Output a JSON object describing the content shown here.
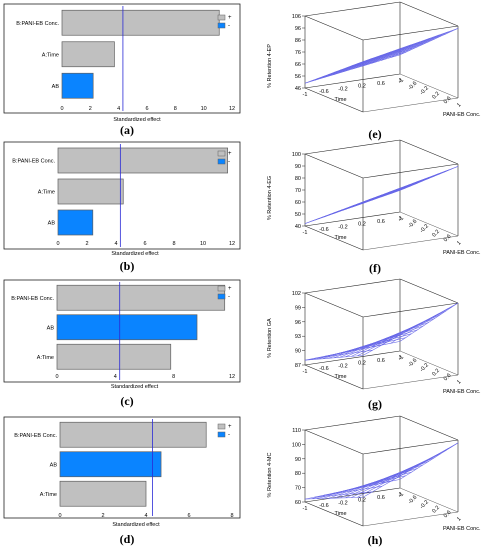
{
  "pareto_charts": [
    {
      "panel": "(a)",
      "xlabel": "Standardized effect",
      "xlim": [
        0,
        12
      ],
      "ticks": [
        0,
        2,
        4,
        6,
        8,
        10,
        12
      ],
      "critical_value": 4.3,
      "legend": [
        "+",
        "-"
      ],
      "bars": [
        {
          "label": "B:PANI-EB Conc.",
          "value": 11.1,
          "sign": "+"
        },
        {
          "label": "A:Time",
          "value": 3.7,
          "sign": "+"
        },
        {
          "label": "AB",
          "value": 2.2,
          "sign": "-"
        }
      ]
    },
    {
      "panel": "(b)",
      "xlabel": "Standardized effect",
      "xlim": [
        0,
        12
      ],
      "ticks": [
        0,
        2,
        4,
        6,
        8,
        10,
        12
      ],
      "critical_value": 4.3,
      "legend": [
        "+",
        "-"
      ],
      "bars": [
        {
          "label": "B:PANI-EB Conc.",
          "value": 11.7,
          "sign": "+"
        },
        {
          "label": "A:Time",
          "value": 4.5,
          "sign": "+"
        },
        {
          "label": "AB",
          "value": 2.4,
          "sign": "-"
        }
      ]
    },
    {
      "panel": "(c)",
      "xlabel": "Standardized effect",
      "xlim": [
        0,
        12
      ],
      "ticks": [
        0,
        4,
        8,
        12
      ],
      "critical_value": 4.3,
      "legend": [
        "+",
        "-"
      ],
      "bars": [
        {
          "label": "B:PANI-EB Conc.",
          "value": 11.5,
          "sign": "+"
        },
        {
          "label": "AB",
          "value": 9.6,
          "sign": "-"
        },
        {
          "label": "A:Time",
          "value": 7.8,
          "sign": "+"
        }
      ]
    },
    {
      "panel": "(d)",
      "xlabel": "Standardized effect",
      "xlim": [
        0,
        8
      ],
      "ticks": [
        0,
        2,
        4,
        6,
        8
      ],
      "critical_value": 4.3,
      "legend": [
        "+",
        "-"
      ],
      "bars": [
        {
          "label": "B:PANI-EB Conc.",
          "value": 6.8,
          "sign": "+"
        },
        {
          "label": "AB",
          "value": 4.7,
          "sign": "-"
        },
        {
          "label": "A:Time",
          "value": 4.0,
          "sign": "+"
        }
      ]
    }
  ],
  "surface_charts": [
    {
      "panel": "(e)",
      "zlabel": "% Retention 4-EP",
      "zticks": [
        "106",
        "96",
        "86",
        "76",
        "66",
        "56",
        "46"
      ],
      "zlim": [
        46,
        106
      ],
      "z_corners": {
        "t_lo_c_lo": 50,
        "t_hi_c_lo": 62,
        "t_lo_c_hi": 88,
        "t_hi_c_hi": 104
      },
      "time_label": "Time",
      "time_ticks": [
        "-1",
        "-0.6",
        "-0.2",
        "0.2",
        "0.6",
        "1"
      ],
      "conc_label": "PANI-EB Conc.",
      "conc_ticks": [
        "-1",
        "-0.6",
        "-0.2",
        "0.2",
        "0.6",
        "1"
      ]
    },
    {
      "panel": "(f)",
      "zlabel": "% Retention 4-EG",
      "zticks": [
        "100",
        "90",
        "80",
        "70",
        "60",
        "50",
        "40"
      ],
      "zlim": [
        40,
        100
      ],
      "z_corners": {
        "t_lo_c_lo": 42,
        "t_hi_c_lo": 58,
        "t_lo_c_hi": 80,
        "t_hi_c_hi": 98
      },
      "time_label": "Time",
      "time_ticks": [
        "-1",
        "-0.6",
        "-0.2",
        "0.2",
        "0.6",
        "1"
      ],
      "conc_label": "PANI-EB Conc.",
      "conc_ticks": [
        "-1",
        "-0.6",
        "-0.2",
        "0.2",
        "0.6",
        "1"
      ]
    },
    {
      "panel": "(g)",
      "zlabel": "% Retention GA",
      "zticks": [
        "102",
        "99",
        "96",
        "93",
        "90",
        "87"
      ],
      "zlim": [
        87,
        102
      ],
      "z_corners": {
        "t_lo_c_lo": 88,
        "t_hi_c_lo": 89,
        "t_lo_c_hi": 94,
        "t_hi_c_hi": 102
      },
      "time_label": "Time",
      "time_ticks": [
        "-1",
        "-0.6",
        "-0.2",
        "0.2",
        "0.6",
        "1"
      ],
      "conc_label": "PANI-EB Conc.",
      "conc_ticks": [
        "-1",
        "-0.6",
        "-0.2",
        "0.2",
        "0.6",
        "1"
      ]
    },
    {
      "panel": "(h)",
      "zlabel": "% Retention 4-MC",
      "zticks": [
        "110",
        "100",
        "90",
        "80",
        "70",
        "60"
      ],
      "zlim": [
        60,
        110
      ],
      "z_corners": {
        "t_lo_c_lo": 62,
        "t_hi_c_lo": 66,
        "t_lo_c_hi": 80,
        "t_hi_c_hi": 108
      },
      "time_label": "Time",
      "time_ticks": [
        "-1",
        "-0.6",
        "-0.2",
        "0.2",
        "0.6",
        "1"
      ],
      "conc_label": "PANI-EB Conc.",
      "conc_ticks": [
        "-1",
        "-0.6",
        "-0.2",
        "0.2",
        "0.6",
        "1"
      ]
    }
  ],
  "colors": {
    "positive_bar": "#c0c0c0",
    "negative_bar": "#0a84ff",
    "reference_line": "#2b2bd6",
    "mesh": "#6868e8",
    "box": "#222222",
    "text": "#000000"
  },
  "chart_data": [
    {
      "type": "bar",
      "orientation": "horizontal",
      "panel": "(a)",
      "categories": [
        "B:PANI-EB Conc.",
        "A:Time",
        "AB"
      ],
      "values": [
        11.1,
        3.7,
        2.2
      ],
      "signs": [
        "+",
        "+",
        "-"
      ],
      "xlabel": "Standardized effect",
      "xlim": [
        0,
        12
      ],
      "reference_line": 4.3,
      "legend": [
        "+",
        "-"
      ],
      "legend_position": "top-right"
    },
    {
      "type": "bar",
      "orientation": "horizontal",
      "panel": "(b)",
      "categories": [
        "B:PANI-EB Conc.",
        "A:Time",
        "AB"
      ],
      "values": [
        11.7,
        4.5,
        2.4
      ],
      "signs": [
        "+",
        "+",
        "-"
      ],
      "xlabel": "Standardized effect",
      "xlim": [
        0,
        12
      ],
      "reference_line": 4.3,
      "legend": [
        "+",
        "-"
      ],
      "legend_position": "top-right"
    },
    {
      "type": "bar",
      "orientation": "horizontal",
      "panel": "(c)",
      "categories": [
        "B:PANI-EB Conc.",
        "AB",
        "A:Time"
      ],
      "values": [
        11.5,
        9.6,
        7.8
      ],
      "signs": [
        "+",
        "-",
        "+"
      ],
      "xlabel": "Standardized effect",
      "xlim": [
        0,
        12
      ],
      "reference_line": 4.3,
      "legend": [
        "+",
        "-"
      ],
      "legend_position": "top-right"
    },
    {
      "type": "bar",
      "orientation": "horizontal",
      "panel": "(d)",
      "categories": [
        "B:PANI-EB Conc.",
        "AB",
        "A:Time"
      ],
      "values": [
        6.8,
        4.7,
        4.0
      ],
      "signs": [
        "+",
        "-",
        "+"
      ],
      "xlabel": "Standardized effect",
      "xlim": [
        0,
        8
      ],
      "reference_line": 4.3,
      "legend": [
        "+",
        "-"
      ],
      "legend_position": "top-right"
    },
    {
      "type": "surface",
      "panel": "(e)",
      "zlabel": "% Retention 4-EP",
      "x": "Time",
      "y": "PANI-EB Conc.",
      "xlim": [
        -1,
        1
      ],
      "ylim": [
        -1,
        1
      ],
      "zlim": [
        46,
        106
      ],
      "z_corners": {
        "t_lo_c_lo": 50,
        "t_hi_c_lo": 62,
        "t_lo_c_hi": 88,
        "t_hi_c_hi": 104
      }
    },
    {
      "type": "surface",
      "panel": "(f)",
      "zlabel": "% Retention 4-EG",
      "x": "Time",
      "y": "PANI-EB Conc.",
      "xlim": [
        -1,
        1
      ],
      "ylim": [
        -1,
        1
      ],
      "zlim": [
        40,
        100
      ],
      "z_corners": {
        "t_lo_c_lo": 42,
        "t_hi_c_lo": 58,
        "t_lo_c_hi": 80,
        "t_hi_c_hi": 98
      }
    },
    {
      "type": "surface",
      "panel": "(g)",
      "zlabel": "% Retention GA",
      "x": "Time",
      "y": "PANI-EB Conc.",
      "xlim": [
        -1,
        1
      ],
      "ylim": [
        -1,
        1
      ],
      "zlim": [
        87,
        102
      ],
      "z_corners": {
        "t_lo_c_lo": 88,
        "t_hi_c_lo": 89,
        "t_lo_c_hi": 94,
        "t_hi_c_hi": 102
      }
    },
    {
      "type": "surface",
      "panel": "(h)",
      "zlabel": "% Retention 4-MC",
      "x": "Time",
      "y": "PANI-EB Conc.",
      "xlim": [
        -1,
        1
      ],
      "ylim": [
        -1,
        1
      ],
      "zlim": [
        60,
        110
      ],
      "z_corners": {
        "t_lo_c_lo": 62,
        "t_hi_c_lo": 66,
        "t_lo_c_hi": 80,
        "t_hi_c_hi": 108
      }
    }
  ]
}
